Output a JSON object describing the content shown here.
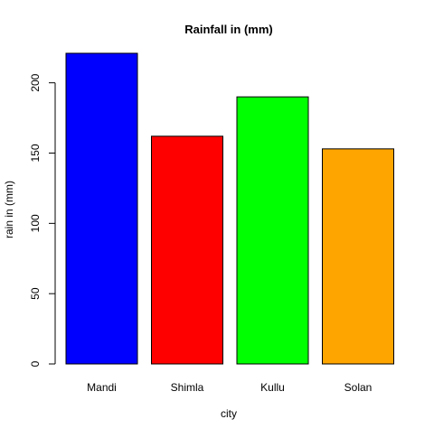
{
  "chart_data": {
    "type": "bar",
    "title": "Rainfall in (mm)",
    "xlabel": "city",
    "ylabel": "rain in (mm)",
    "categories": [
      "Mandi",
      "Shimla",
      "Kullu",
      "Solan"
    ],
    "values": [
      221,
      162,
      190,
      153
    ],
    "colors": [
      "#0000ff",
      "#ff0000",
      "#00ff00",
      "#ffa500"
    ],
    "ylim": [
      0,
      221
    ],
    "yticks": [
      0,
      50,
      100,
      150,
      200
    ],
    "grid": false,
    "legend": "none"
  }
}
